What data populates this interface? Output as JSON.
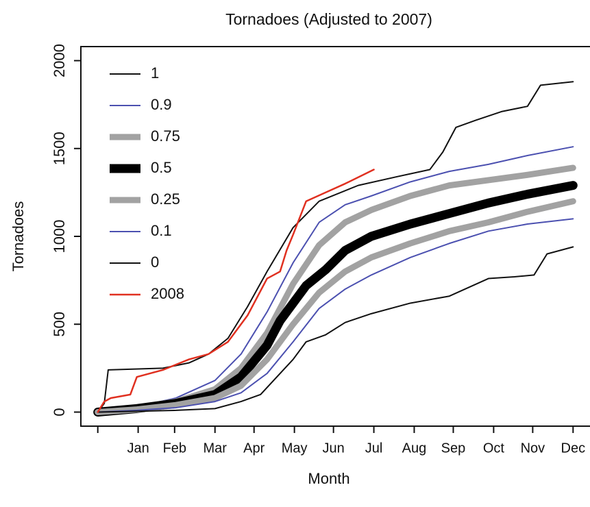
{
  "chart_data": {
    "type": "line",
    "title": "Tornadoes (Adjusted to 2007)",
    "xlabel": "Month",
    "ylabel": "Tornadoes",
    "xlim": [
      -13,
      378
    ],
    "ylim": [
      -80,
      2080
    ],
    "xticks": [
      {
        "value": 0,
        "label": null
      },
      {
        "value": 31,
        "label": "Jan"
      },
      {
        "value": 59,
        "label": "Feb"
      },
      {
        "value": 90,
        "label": "Mar"
      },
      {
        "value": 120,
        "label": "Apr"
      },
      {
        "value": 151,
        "label": "May"
      },
      {
        "value": 181,
        "label": "Jun"
      },
      {
        "value": 212,
        "label": "Jul"
      },
      {
        "value": 243,
        "label": "Aug"
      },
      {
        "value": 273,
        "label": "Sep"
      },
      {
        "value": 304,
        "label": "Oct"
      },
      {
        "value": 334,
        "label": "Nov"
      },
      {
        "value": 365,
        "label": "Dec"
      }
    ],
    "yticks": [
      0,
      500,
      1000,
      1500,
      2000
    ],
    "legend": "top-left",
    "series": [
      {
        "name": "1",
        "color": "#111111",
        "width": 2,
        "x": [
          0,
          5,
          8,
          50,
          70,
          85,
          100,
          115,
          130,
          150,
          170,
          200,
          230,
          255,
          265,
          275,
          290,
          310,
          330,
          340,
          365
        ],
        "values": [
          0,
          50,
          240,
          250,
          280,
          330,
          420,
          600,
          800,
          1050,
          1200,
          1290,
          1340,
          1380,
          1480,
          1620,
          1660,
          1710,
          1740,
          1860,
          1880
        ]
      },
      {
        "name": "0.9",
        "color": "#4b50b0",
        "width": 2,
        "x": [
          0,
          30,
          60,
          90,
          110,
          130,
          150,
          170,
          190,
          210,
          240,
          270,
          300,
          330,
          365
        ],
        "values": [
          0,
          30,
          80,
          180,
          330,
          570,
          850,
          1080,
          1180,
          1230,
          1310,
          1370,
          1410,
          1460,
          1510
        ]
      },
      {
        "name": "0.75",
        "color": "#a2a2a2",
        "width": 9,
        "x": [
          0,
          30,
          60,
          90,
          110,
          130,
          150,
          170,
          190,
          210,
          240,
          270,
          300,
          330,
          365
        ],
        "values": [
          0,
          25,
          60,
          130,
          250,
          450,
          730,
          950,
          1080,
          1150,
          1230,
          1290,
          1320,
          1350,
          1390
        ]
      },
      {
        "name": "0.5",
        "color": "#000000",
        "width": 13,
        "x": [
          0,
          30,
          60,
          90,
          110,
          130,
          140,
          160,
          175,
          190,
          210,
          240,
          270,
          300,
          330,
          365
        ],
        "values": [
          0,
          20,
          50,
          100,
          200,
          380,
          520,
          720,
          810,
          920,
          1000,
          1070,
          1130,
          1190,
          1240,
          1290
        ]
      },
      {
        "name": "0.25",
        "color": "#a2a2a2",
        "width": 9,
        "x": [
          0,
          30,
          60,
          90,
          110,
          130,
          150,
          170,
          190,
          210,
          240,
          270,
          300,
          330,
          365
        ],
        "values": [
          0,
          15,
          40,
          80,
          150,
          300,
          500,
          680,
          800,
          880,
          960,
          1030,
          1080,
          1140,
          1200
        ]
      },
      {
        "name": "0.1",
        "color": "#4b50b0",
        "width": 2,
        "x": [
          0,
          30,
          60,
          90,
          110,
          130,
          150,
          170,
          190,
          210,
          240,
          270,
          300,
          330,
          365
        ],
        "values": [
          0,
          10,
          25,
          60,
          110,
          220,
          400,
          590,
          700,
          780,
          880,
          960,
          1030,
          1070,
          1100
        ]
      },
      {
        "name": "0",
        "color": "#111111",
        "width": 2,
        "x": [
          0,
          30,
          60,
          90,
          110,
          125,
          150,
          160,
          175,
          190,
          210,
          240,
          270,
          300,
          320,
          335,
          345,
          365
        ],
        "values": [
          0,
          5,
          10,
          20,
          60,
          100,
          300,
          400,
          440,
          510,
          560,
          620,
          660,
          760,
          770,
          780,
          900,
          940
        ]
      },
      {
        "name": "2008",
        "color": "#e03020",
        "width": 2.5,
        "x": [
          0,
          5,
          10,
          25,
          30,
          50,
          70,
          85,
          100,
          115,
          130,
          140,
          145,
          150,
          160,
          175,
          190,
          212
        ],
        "values": [
          0,
          60,
          80,
          100,
          200,
          240,
          300,
          330,
          400,
          550,
          760,
          800,
          920,
          1010,
          1200,
          1250,
          1300,
          1380
        ]
      }
    ]
  }
}
